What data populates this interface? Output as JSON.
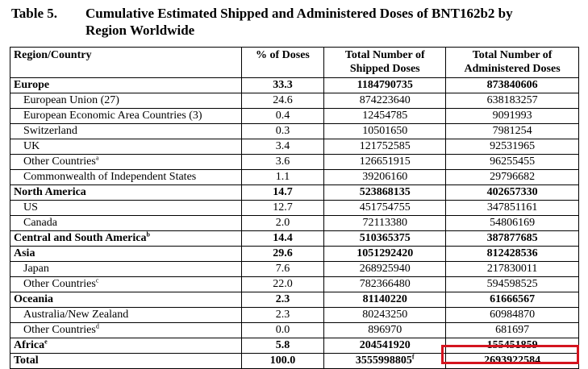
{
  "table": {
    "label": "Table 5.",
    "title_line1": "Cumulative Estimated Shipped and Administered Doses of BNT162b2 by",
    "title_line2": "Region Worldwide",
    "headers": {
      "region": "Region/Country",
      "pct": "% of Doses",
      "shipped_line1": "Total Number of",
      "shipped_line2": "Shipped Doses",
      "admin_line1": "Total Number of",
      "admin_line2": "Administered Doses"
    },
    "rows": [
      {
        "region": "Europe",
        "pct": "33.3",
        "shipped": "1184790735",
        "admin": "873840606"
      },
      {
        "region": "European Union (27)",
        "pct": "24.6",
        "shipped": "874223640",
        "admin": "638183257"
      },
      {
        "region": "European Economic Area Countries (3)",
        "pct": "0.4",
        "shipped": "12454785",
        "admin": "9091993"
      },
      {
        "region": "Switzerland",
        "pct": "0.3",
        "shipped": "10501650",
        "admin": "7981254"
      },
      {
        "region": "UK",
        "pct": "3.4",
        "shipped": "121752585",
        "admin": "92531965"
      },
      {
        "region": "Other Countries",
        "note": "a",
        "pct": "3.6",
        "shipped": "126651915",
        "admin": "96255455"
      },
      {
        "region": "Commonwealth of Independent States",
        "pct": "1.1",
        "shipped": "39206160",
        "admin": "29796682"
      },
      {
        "region": "North America",
        "pct": "14.7",
        "shipped": "523868135",
        "admin": "402657330"
      },
      {
        "region": "US",
        "pct": "12.7",
        "shipped": "451754755",
        "admin": "347851161"
      },
      {
        "region": "Canada",
        "pct": "2.0",
        "shipped": "72113380",
        "admin": "54806169"
      },
      {
        "region": "Central and South America",
        "note": "b",
        "pct": "14.4",
        "shipped": "510365375",
        "admin": "387877685"
      },
      {
        "region": "Asia",
        "pct": "29.6",
        "shipped": "1051292420",
        "admin": "812428536"
      },
      {
        "region": "Japan",
        "pct": "7.6",
        "shipped": "268925940",
        "admin": "217830011"
      },
      {
        "region": "Other Countries",
        "note": "c",
        "pct": "22.0",
        "shipped": "782366480",
        "admin": "594598525"
      },
      {
        "region": "Oceania",
        "pct": "2.3",
        "shipped": "81140220",
        "admin": "61666567"
      },
      {
        "region": "Australia/New Zealand",
        "pct": "2.3",
        "shipped": "80243250",
        "admin": "60984870"
      },
      {
        "region": "Other Countries",
        "note": "d",
        "pct": "0.0",
        "shipped": "896970",
        "admin": "681697"
      },
      {
        "region": "Africa",
        "note": "e",
        "pct": "5.8",
        "shipped": "204541920",
        "admin": "155451859"
      }
    ],
    "total": {
      "region": "Total",
      "pct": "100.0",
      "shipped": "3555998805",
      "shipped_note": "f",
      "admin": "2693922584"
    }
  },
  "highlight": {
    "color": "#d4141f",
    "target": "total-administered-doses"
  }
}
